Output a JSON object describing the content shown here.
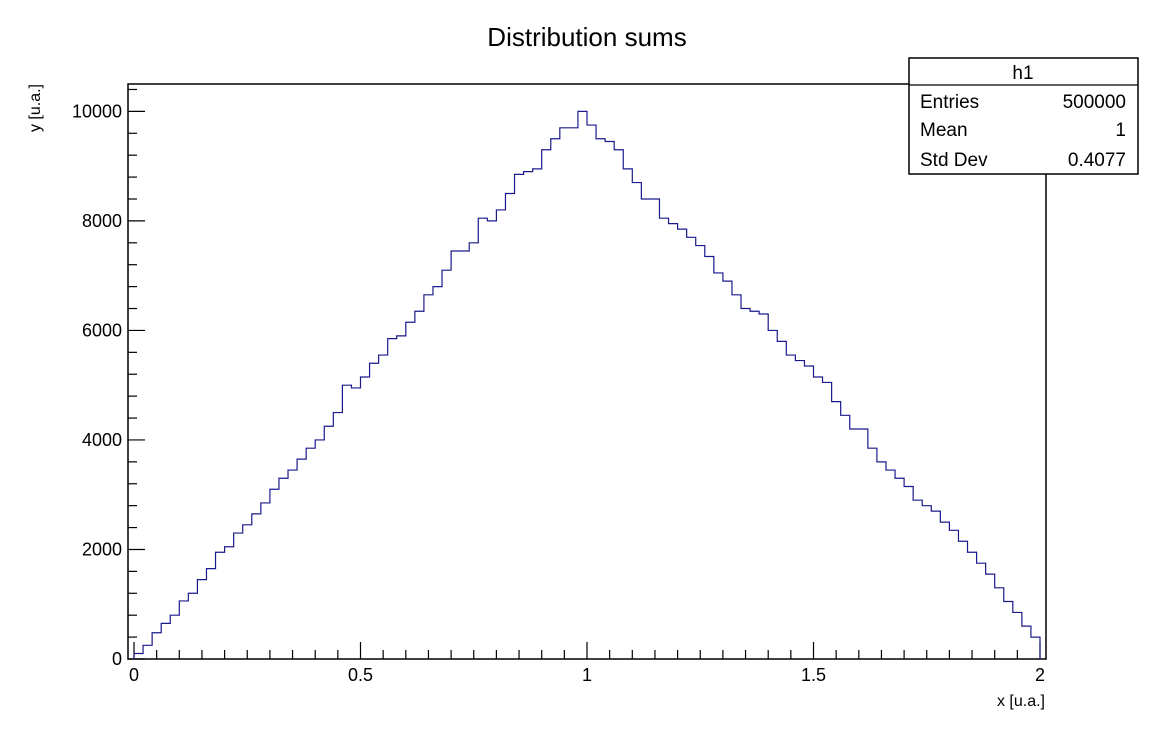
{
  "chart_data": {
    "type": "histogram",
    "title": "Distribution sums",
    "xlabel": "x [u.a.]",
    "ylabel": "y [u.a.]",
    "xlim": [
      0,
      2
    ],
    "ylim": [
      0,
      10500
    ],
    "x_ticks": [
      "0",
      "0.5",
      "1",
      "1.5",
      "2"
    ],
    "y_ticks": [
      "0",
      "2000",
      "4000",
      "6000",
      "8000",
      "10000"
    ],
    "grid": false,
    "line_color": "#1a1a8c",
    "bin_edges_start": 0,
    "bin_width": 0.02,
    "series": [
      {
        "name": "h1",
        "values": [
          100,
          250,
          480,
          650,
          800,
          1060,
          1200,
          1450,
          1650,
          1950,
          2050,
          2300,
          2450,
          2650,
          2850,
          3100,
          3300,
          3450,
          3650,
          3850,
          4000,
          4250,
          4500,
          5000,
          4950,
          5150,
          5400,
          5550,
          5850,
          5900,
          6150,
          6350,
          6650,
          6800,
          7100,
          7450,
          7450,
          7600,
          8050,
          8000,
          8200,
          8500,
          8850,
          8900,
          8950,
          9300,
          9500,
          9700,
          9700,
          10000,
          9750,
          9500,
          9450,
          9300,
          8950,
          8700,
          8400,
          8400,
          8050,
          7950,
          7850,
          7700,
          7550,
          7350,
          7050,
          6900,
          6650,
          6400,
          6350,
          6300,
          6000,
          5800,
          5550,
          5450,
          5350,
          5150,
          5050,
          4700,
          4450,
          4200,
          4200,
          3850,
          3600,
          3450,
          3300,
          3150,
          2900,
          2800,
          2700,
          2500,
          2350,
          2150,
          1950,
          1750,
          1550,
          1300,
          1050,
          850,
          600,
          400
        ]
      }
    ],
    "stats_box": {
      "title": "h1",
      "rows": [
        {
          "label": "Entries",
          "value": "500000"
        },
        {
          "label": "Mean",
          "value": "1"
        },
        {
          "label": "Std Dev",
          "value": "0.4077"
        }
      ]
    }
  }
}
